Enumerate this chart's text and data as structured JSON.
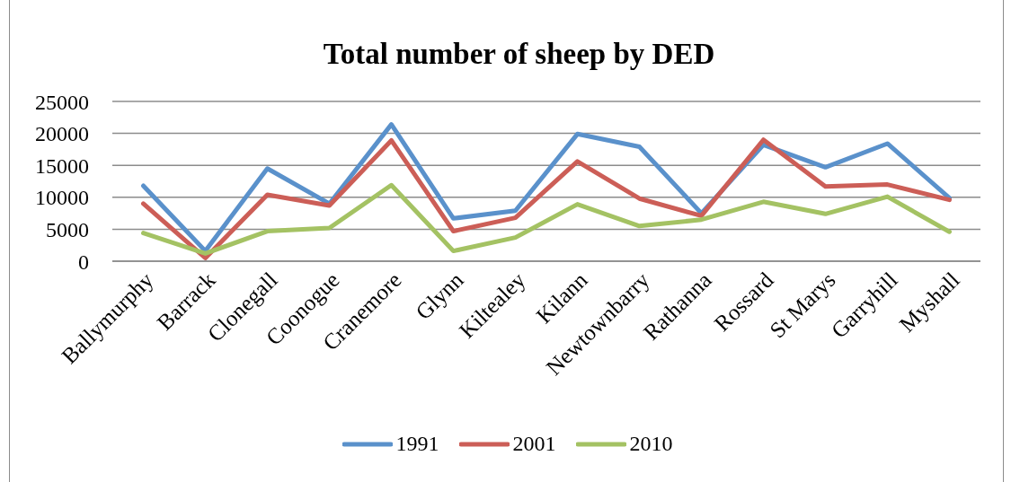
{
  "chart_data": {
    "type": "line",
    "title": "Total number of sheep by DED",
    "categories": [
      "Ballymurphy",
      "Barrack",
      "Clonegall",
      "Coonogue",
      "Cranemore",
      "Glynn",
      "Kiltealey",
      "Kilann",
      "Newtownbarry",
      "Rathanna",
      "Rossard",
      "St Marys",
      "Garryhill",
      "Myshall"
    ],
    "series": [
      {
        "name": "1991",
        "color": "#5a91cb",
        "values": [
          11800,
          1600,
          14500,
          9000,
          21400,
          6700,
          7900,
          19900,
          17900,
          7500,
          18200,
          14700,
          18400,
          9900
        ]
      },
      {
        "name": "2001",
        "color": "#cc5e57",
        "values": [
          9000,
          500,
          10400,
          8700,
          18900,
          4700,
          6800,
          15600,
          9800,
          7100,
          19000,
          11700,
          12000,
          9600
        ]
      },
      {
        "name": "2010",
        "color": "#a4c263",
        "values": [
          4400,
          1200,
          4700,
          5200,
          11900,
          1600,
          3700,
          8900,
          5500,
          6500,
          9300,
          7400,
          10100,
          4600
        ]
      }
    ],
    "ylim": [
      0,
      25000
    ],
    "yticks": [
      0,
      5000,
      10000,
      15000,
      20000,
      25000
    ],
    "grid": "y",
    "legend": "bottom",
    "marker": "none",
    "line_style": "solid"
  }
}
